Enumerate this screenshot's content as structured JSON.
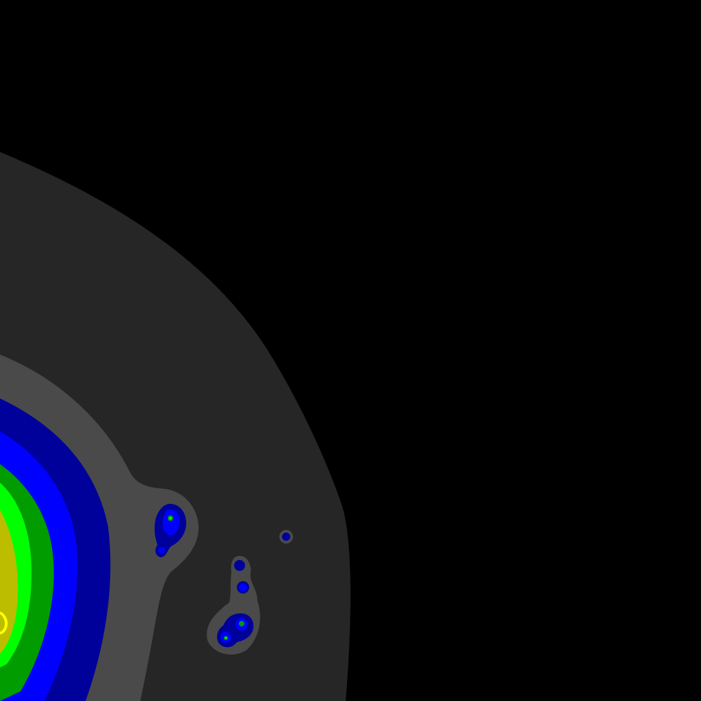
{
  "image": {
    "description_visible_text": "",
    "background_color": "#000000",
    "contour_palette": {
      "outer_halo": "#262626",
      "inner_halo": "#4a4a4a",
      "navy": "#00009a",
      "blue": "#0000ff",
      "dark_green": "#009c00",
      "green": "#00ff00",
      "olive": "#bdbd00",
      "yellow": "#ffff00"
    }
  }
}
